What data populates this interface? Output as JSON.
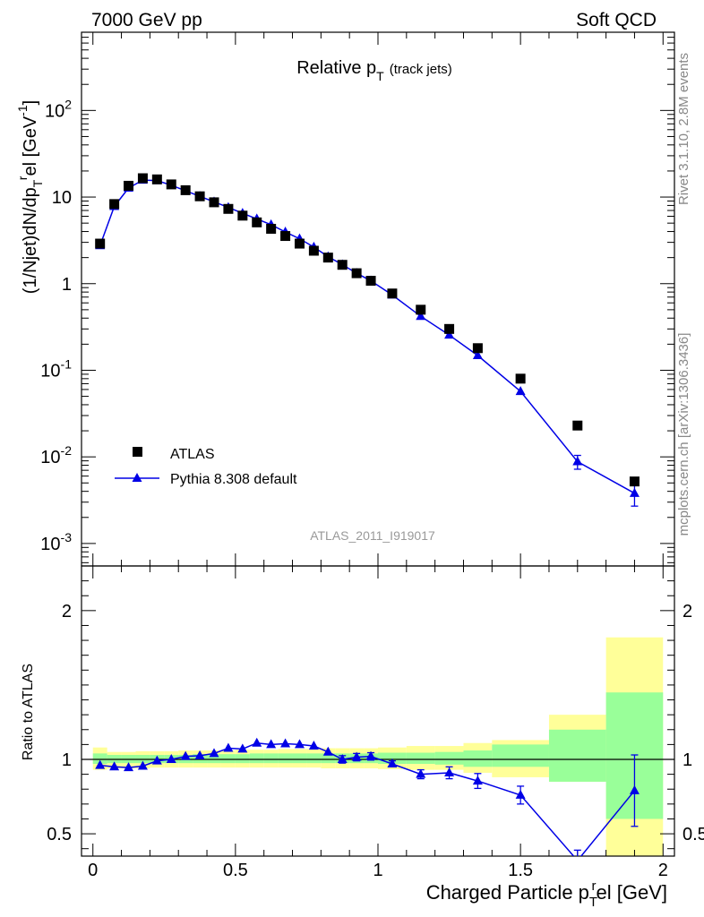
{
  "header": {
    "energy_label": "7000 GeV pp",
    "process_label": "Soft QCD"
  },
  "side_labels": {
    "rivet": "Rivet 3.1.10,  2.8M events",
    "mcplots": "mcplots.cern.ch [arXiv:1306.3436]"
  },
  "colors": {
    "data": "#000000",
    "mc": "#0000e6",
    "band_outer": "#ffff99",
    "band_inner": "#99ff99"
  },
  "chart_data": [
    {
      "type": "scatter",
      "title": "Relative p",
      "title_sub": "T",
      "title_note": "(track jets)",
      "ylabel": "(1/Njet)dN/dp",
      "ylabel_sub": "T",
      "ylabel_sup": "r",
      "ylabel_tail": "el [GeV",
      "ylabel_unit_sup": "-1",
      "ylabel_close": "]",
      "analysis_label": "ATLAS_2011_I919017",
      "yscale": "log",
      "ylim": [
        0.00055,
        800
      ],
      "xlim": [
        -0.04,
        2.04
      ],
      "y_ticks": [
        {
          "value": 0.001,
          "base": "10",
          "exp": "-3"
        },
        {
          "value": 0.01,
          "base": "10",
          "exp": "-2"
        },
        {
          "value": 0.1,
          "base": "10",
          "exp": "-1"
        },
        {
          "value": 1,
          "base": "1",
          "exp": ""
        },
        {
          "value": 10,
          "base": "10",
          "exp": ""
        },
        {
          "value": 100,
          "base": "10",
          "exp": "2"
        }
      ],
      "legend": [
        {
          "label": "ATLAS",
          "marker": "square"
        },
        {
          "label": "Pythia 8.308 default",
          "marker": "triangle"
        }
      ],
      "legend_position": "bottom-left",
      "x": [
        0.025,
        0.075,
        0.125,
        0.175,
        0.225,
        0.275,
        0.325,
        0.375,
        0.425,
        0.475,
        0.525,
        0.575,
        0.625,
        0.675,
        0.725,
        0.775,
        0.825,
        0.875,
        0.925,
        0.975,
        1.05,
        1.15,
        1.25,
        1.35,
        1.5,
        1.7,
        1.9
      ],
      "series": [
        {
          "name": "ATLAS",
          "values": [
            2.9,
            8.3,
            13.5,
            16.5,
            16.0,
            14.0,
            12.0,
            10.2,
            8.7,
            7.3,
            6.1,
            5.1,
            4.3,
            3.55,
            2.9,
            2.4,
            2.0,
            1.65,
            1.32,
            1.08,
            0.77,
            0.5,
            0.3,
            0.18,
            0.08,
            0.023,
            0.0052
          ]
        },
        {
          "name": "Pythia 8.308 default",
          "values": [
            2.75,
            7.8,
            12.7,
            15.7,
            15.5,
            13.7,
            11.8,
            10.2,
            8.8,
            7.6,
            6.5,
            5.6,
            4.8,
            3.95,
            3.3,
            2.65,
            2.05,
            1.66,
            1.32,
            1.08,
            0.74,
            0.42,
            0.255,
            0.148,
            0.057,
            0.0088,
            0.0038
          ],
          "err": [
            0,
            0,
            0,
            0,
            0,
            0,
            0,
            0,
            0,
            0,
            0,
            0,
            0,
            0,
            0,
            0,
            0,
            0,
            0,
            0,
            0,
            0,
            0,
            0,
            0,
            0.0016,
            0.0011
          ]
        }
      ]
    },
    {
      "type": "scatter",
      "ylabel": "Ratio to ATLAS",
      "xlabel": "Charged Particle p",
      "xlabel_sub": "T",
      "xlabel_sup": "r",
      "xlabel_tail": "el [GeV]",
      "ylim": [
        0.35,
        2.3
      ],
      "xlim": [
        -0.04,
        2.04
      ],
      "y_tick_labels": [
        "0.5",
        "1",
        "2"
      ],
      "x_tick_labels": [
        "0",
        "0.5",
        "1",
        "1.5",
        "2"
      ],
      "bins": [
        [
          0.0,
          0.05
        ],
        [
          0.05,
          0.1
        ],
        [
          0.1,
          0.15
        ],
        [
          0.15,
          0.2
        ],
        [
          0.2,
          0.25
        ],
        [
          0.25,
          0.3
        ],
        [
          0.3,
          0.35
        ],
        [
          0.35,
          0.4
        ],
        [
          0.4,
          0.45
        ],
        [
          0.45,
          0.5
        ],
        [
          0.5,
          0.55
        ],
        [
          0.55,
          0.6
        ],
        [
          0.6,
          0.65
        ],
        [
          0.65,
          0.7
        ],
        [
          0.7,
          0.75
        ],
        [
          0.75,
          0.8
        ],
        [
          0.8,
          0.85
        ],
        [
          0.85,
          0.9
        ],
        [
          0.9,
          0.95
        ],
        [
          0.95,
          1.0
        ],
        [
          1.0,
          1.1
        ],
        [
          1.1,
          1.2
        ],
        [
          1.2,
          1.3
        ],
        [
          1.3,
          1.4
        ],
        [
          1.4,
          1.6
        ],
        [
          1.6,
          1.8
        ],
        [
          1.8,
          2.0
        ]
      ],
      "band_outer": [
        [
          0.93,
          1.08
        ],
        [
          0.94,
          1.05
        ],
        [
          0.94,
          1.05
        ],
        [
          0.94,
          1.055
        ],
        [
          0.945,
          1.055
        ],
        [
          0.945,
          1.055
        ],
        [
          0.945,
          1.06
        ],
        [
          0.945,
          1.06
        ],
        [
          0.945,
          1.06
        ],
        [
          0.945,
          1.06
        ],
        [
          0.945,
          1.065
        ],
        [
          0.945,
          1.065
        ],
        [
          0.945,
          1.065
        ],
        [
          0.945,
          1.07
        ],
        [
          0.945,
          1.07
        ],
        [
          0.945,
          1.07
        ],
        [
          0.94,
          1.075
        ],
        [
          0.94,
          1.075
        ],
        [
          0.94,
          1.075
        ],
        [
          0.94,
          1.075
        ],
        [
          0.935,
          1.08
        ],
        [
          0.93,
          1.09
        ],
        [
          0.93,
          1.09
        ],
        [
          0.91,
          1.11
        ],
        [
          0.88,
          1.13
        ],
        [
          0.85,
          1.3
        ],
        [
          0.35,
          1.82
        ]
      ],
      "band_inner": [
        [
          0.97,
          1.04
        ],
        [
          0.975,
          1.03
        ],
        [
          0.975,
          1.03
        ],
        [
          0.975,
          1.03
        ],
        [
          0.975,
          1.03
        ],
        [
          0.975,
          1.03
        ],
        [
          0.975,
          1.03
        ],
        [
          0.975,
          1.035
        ],
        [
          0.975,
          1.035
        ],
        [
          0.975,
          1.035
        ],
        [
          0.975,
          1.035
        ],
        [
          0.975,
          1.04
        ],
        [
          0.975,
          1.04
        ],
        [
          0.975,
          1.04
        ],
        [
          0.975,
          1.04
        ],
        [
          0.975,
          1.04
        ],
        [
          0.975,
          1.04
        ],
        [
          0.975,
          1.04
        ],
        [
          0.975,
          1.04
        ],
        [
          0.975,
          1.04
        ],
        [
          0.97,
          1.045
        ],
        [
          0.97,
          1.045
        ],
        [
          0.965,
          1.05
        ],
        [
          0.95,
          1.06
        ],
        [
          0.95,
          1.1
        ],
        [
          0.85,
          1.2
        ],
        [
          0.6,
          1.45
        ]
      ],
      "series": [
        {
          "name": "Pythia 8.308 default",
          "values": [
            0.96,
            0.95,
            0.945,
            0.955,
            0.99,
            1.0,
            1.02,
            1.025,
            1.04,
            1.075,
            1.07,
            1.11,
            1.1,
            1.105,
            1.1,
            1.09,
            1.05,
            1.0,
            1.015,
            1.02,
            0.97,
            0.9,
            0.91,
            0.855,
            0.76,
            0.32,
            0.79
          ],
          "err": [
            0,
            0,
            0,
            0,
            0,
            0,
            0,
            0,
            0,
            0,
            0,
            0,
            0,
            0,
            0,
            0,
            0,
            0.025,
            0.025,
            0.025,
            0.02,
            0.03,
            0.04,
            0.05,
            0.06,
            0.07,
            0.24
          ]
        }
      ]
    }
  ]
}
